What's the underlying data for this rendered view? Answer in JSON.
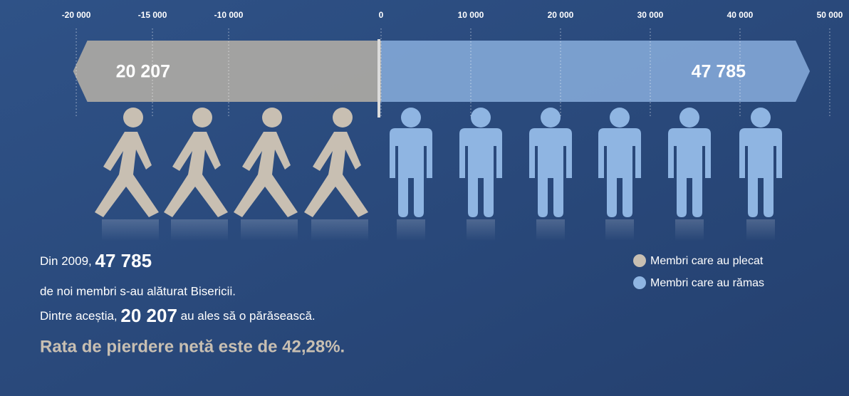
{
  "chart_data": [
    {
      "type": "bar",
      "series": [
        {
          "name": "Membri care au plecat",
          "color": "#c8bfb2",
          "bar_color": "#a9a6a2",
          "values": [
            -20207
          ],
          "value_labels": [
            "20 207"
          ]
        }
      ],
      "xlim": [
        -22900,
        0
      ],
      "xticks": [
        {
          "value": -20000,
          "label": "-20 000"
        },
        {
          "value": -15000,
          "label": "-15 000"
        },
        {
          "value": -10000,
          "label": "-10 000"
        }
      ]
    },
    {
      "type": "bar",
      "series": [
        {
          "name": "Membri care au rămas",
          "color": "#8fb5e2",
          "bar_color": "#7ea3d3",
          "values": [
            47785
          ],
          "value_labels": [
            "47 785"
          ]
        }
      ],
      "xlim": [
        0,
        50400
      ],
      "xticks": [
        0,
        {
          "value": 10000,
          "label": "10 000"
        },
        {
          "value": 20000,
          "label": "20 000"
        },
        {
          "value": 30000,
          "label": "30 000"
        },
        {
          "value": 40000,
          "label": "40 000"
        },
        {
          "value": 50000,
          "label": "50 000"
        }
      ]
    }
  ],
  "text": {
    "line1": [
      "Din 2009, ",
      "47 785"
    ],
    "line2": "de noi membri s-au alăturat Bisericii.",
    "line3": [
      "Dintre aceștia, ",
      "20 207",
      " au ales să o părăsească."
    ],
    "line4": "Rata de pierdere netă este de 42,28%."
  }
}
